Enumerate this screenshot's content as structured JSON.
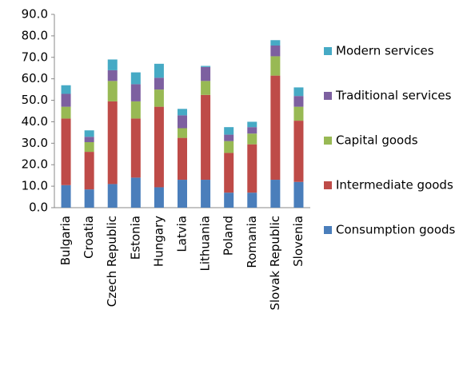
{
  "chart_data": {
    "type": "stacked-bar",
    "categories": [
      "Bulgaria",
      "Croatia",
      "Czech Republic",
      "Estonia",
      "Hungary",
      "Latvia",
      "Lithuania",
      "Poland",
      "Romania",
      "Slovak Republic",
      "Slovenia"
    ],
    "series": [
      {
        "name": "Consumption goods",
        "color": "#4a7ebb",
        "values": [
          10.5,
          8.5,
          11,
          14,
          9.5,
          13,
          13,
          7,
          7,
          13,
          12
        ]
      },
      {
        "name": "Intermediate goods",
        "color": "#be4b48",
        "values": [
          31,
          17.5,
          38.5,
          27.5,
          37.5,
          19.5,
          39.5,
          18.5,
          22.5,
          48.5,
          28.5
        ]
      },
      {
        "name": "Capital goods",
        "color": "#98b954",
        "values": [
          5.5,
          4.5,
          9.5,
          8,
          8,
          4.5,
          6.5,
          5.5,
          5,
          9,
          6.5
        ]
      },
      {
        "name": "Traditional services",
        "color": "#7d60a0",
        "values": [
          6,
          2.5,
          5,
          8,
          5.5,
          6,
          6.5,
          3,
          3,
          5,
          5
        ]
      },
      {
        "name": "Modern services",
        "color": "#46aac5",
        "values": [
          4,
          3,
          5,
          5.5,
          6.5,
          3,
          0.5,
          3.5,
          2.5,
          2.5,
          4
        ]
      }
    ],
    "ylim": [
      0,
      90
    ],
    "yticks": [
      {
        "value": 0,
        "label": "0.0"
      },
      {
        "value": 10,
        "label": "10.0"
      },
      {
        "value": 20,
        "label": "20.0"
      },
      {
        "value": 30,
        "label": "30.0"
      },
      {
        "value": 40,
        "label": "40.0"
      },
      {
        "value": 50,
        "label": "50.0"
      },
      {
        "value": 60,
        "label": "60.0"
      },
      {
        "value": 70,
        "label": "70.0"
      },
      {
        "value": 80,
        "label": "80.0"
      },
      {
        "value": 90,
        "label": "90.0"
      }
    ],
    "grid": false,
    "legend": "right"
  }
}
